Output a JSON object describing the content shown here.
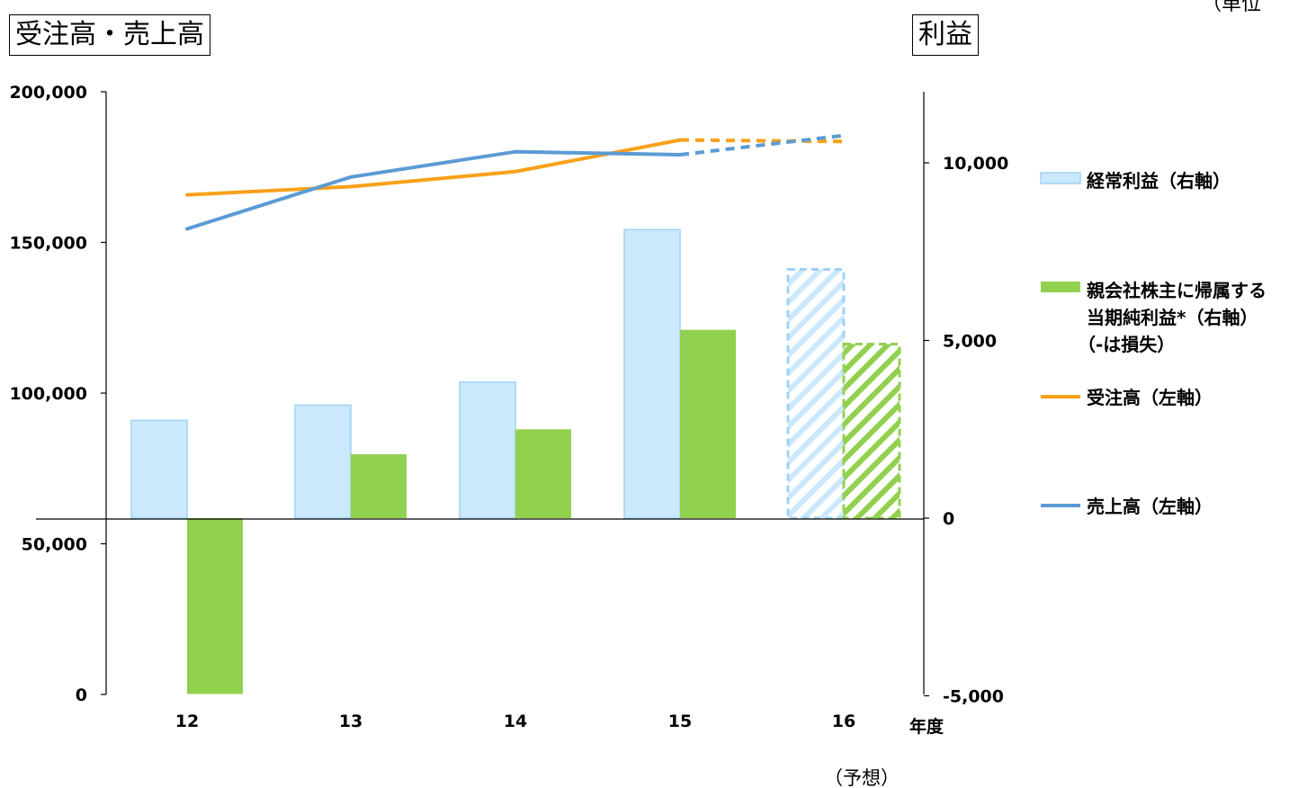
{
  "titles": {
    "left": "受注高・売上高",
    "right": "利益",
    "unit_note": "（単位"
  },
  "chart_data": {
    "type": "bar",
    "categories": [
      "12",
      "13",
      "14",
      "15",
      "16"
    ],
    "x_axis_label": "年度",
    "forecast_category": "16",
    "forecast_label": "（予想）",
    "left_axis": {
      "ylim": [
        0,
        200000
      ],
      "tick_values": [
        0,
        50000,
        100000,
        150000,
        200000
      ],
      "tick_labels": [
        "0",
        "50,000",
        "100,000",
        "150,000",
        "200,000"
      ]
    },
    "right_axis": {
      "ylim": [
        -5000,
        12000
      ],
      "tick_values": [
        -5000,
        0,
        5000,
        10000
      ],
      "tick_labels": [
        "-5,000",
        "0",
        "5,000",
        "10,000"
      ]
    },
    "series": [
      {
        "name": "経常利益（右軸）",
        "kind": "bar",
        "axis": "right",
        "color": "#CCE8FC",
        "border": "#9DD3F7",
        "values": [
          2750,
          3180,
          3830,
          8120,
          7000
        ]
      },
      {
        "name": "親会社株主に帰属する当期純利益*（右軸）（-は損失）",
        "legend_lines": [
          "親会社株主に帰属する",
          "当期純利益*（右軸）",
          "（-は損失）"
        ],
        "kind": "bar",
        "axis": "right",
        "color": "#92D050",
        "values": [
          -4950,
          1800,
          2500,
          5300,
          4900
        ]
      },
      {
        "name": "受注高（左軸）",
        "kind": "line",
        "axis": "left",
        "color": "#F7A11A",
        "values": [
          165800,
          168500,
          173500,
          184000,
          183500
        ]
      },
      {
        "name": "売上高（左軸）",
        "kind": "line",
        "axis": "left",
        "color": "#5B9BD5",
        "values": [
          154500,
          171700,
          180100,
          179100,
          185500
        ]
      }
    ]
  }
}
